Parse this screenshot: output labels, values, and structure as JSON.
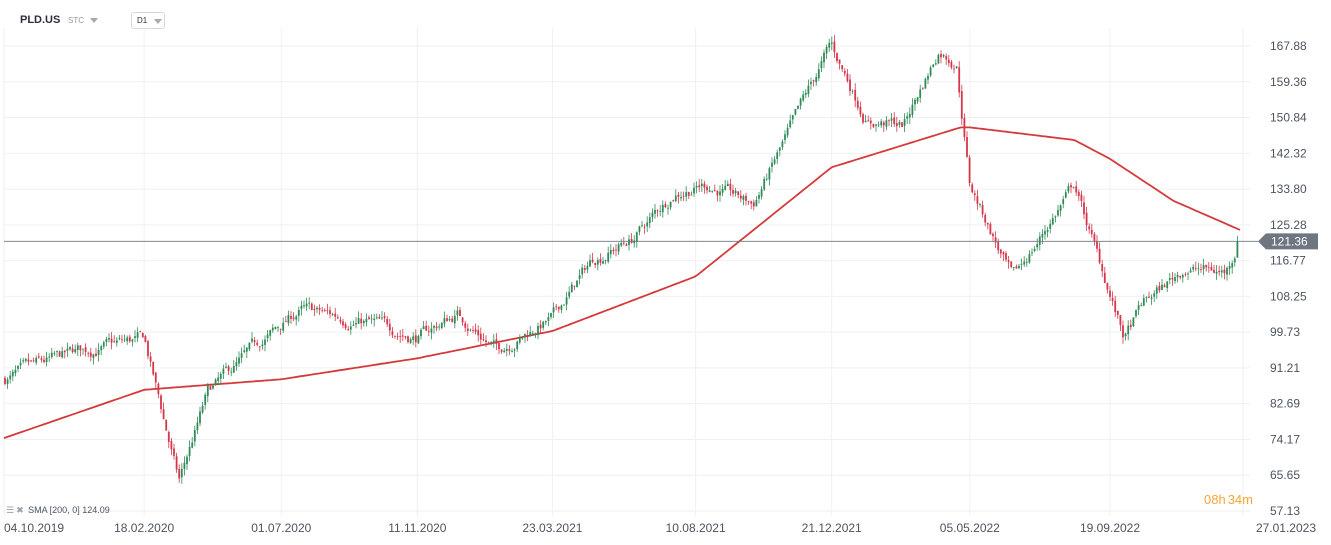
{
  "header": {
    "symbol": "PLD.US",
    "instrument_type": "STC",
    "timeframe": "D1"
  },
  "indicator_legend": {
    "label": "SMA",
    "params": "[200, 0]",
    "value": "124.09"
  },
  "countdown": {
    "hours": "08h",
    "minutes": "34m"
  },
  "colors": {
    "up_candle": "#2e8b57",
    "down_candle": "#d6364a",
    "sma_line": "#d43a3a",
    "price_line": "#6f7680",
    "price_tag_bg": "#6f7680",
    "countdown": "#f7a637"
  },
  "chart_data": {
    "type": "line",
    "subtype": "candlestick",
    "title": "",
    "xlabel": "",
    "ylabel": "",
    "ylim": [
      57.13,
      178
    ],
    "y_ticks": [
      57.13,
      65.65,
      74.17,
      82.69,
      91.21,
      99.73,
      108.25,
      116.77,
      125.28,
      133.8,
      142.32,
      150.84,
      159.36,
      167.88
    ],
    "x_ticks": [
      "04.10.2019",
      "18.02.2020",
      "01.07.2020",
      "11.11.2020",
      "23.03.2021",
      "10.08.2021",
      "21.12.2021",
      "05.05.2022",
      "19.09.2022",
      "27.01.2023"
    ],
    "x_range": [
      "2019-10-04",
      "2023-01-27"
    ],
    "last_price": 121.36,
    "grid": true,
    "price_series": {
      "name": "PLD.US",
      "x": [
        "2019-10-04",
        "2019-12-15",
        "2020-02-18",
        "2020-03-23",
        "2020-04-20",
        "2020-06-10",
        "2020-07-20",
        "2020-09-25",
        "2020-11-11",
        "2020-12-20",
        "2021-01-28",
        "2021-03-23",
        "2021-05-01",
        "2021-06-10",
        "2021-07-20",
        "2021-08-20",
        "2021-10-05",
        "2021-11-15",
        "2021-12-20",
        "2022-01-25",
        "2022-03-01",
        "2022-04-05",
        "2022-04-22",
        "2022-05-05",
        "2022-06-16",
        "2022-08-15",
        "2022-10-03",
        "2022-10-20",
        "2022-12-01",
        "2023-01-10",
        "2023-01-24"
      ],
      "values": [
        88.5,
        95,
        98,
        64,
        85,
        97,
        105,
        102,
        98.5,
        104,
        95.5,
        103,
        117,
        122,
        133,
        135,
        130,
        150,
        168,
        150,
        149,
        167,
        164,
        135,
        112,
        135,
        98,
        106,
        115,
        114,
        121.36
      ]
    },
    "series": [
      {
        "name": "SMA",
        "x": [
          "2019-10-04",
          "2020-02-18",
          "2020-07-01",
          "2020-11-11",
          "2021-03-23",
          "2021-08-10",
          "2021-12-21",
          "2022-04-26",
          "2022-05-05",
          "2022-08-15",
          "2022-09-19",
          "2022-11-20",
          "2023-01-24"
        ],
        "values": [
          74.5,
          86,
          88.5,
          93.5,
          100,
          113,
          139,
          148.5,
          148.5,
          145.5,
          141,
          131,
          124.09
        ]
      }
    ]
  }
}
